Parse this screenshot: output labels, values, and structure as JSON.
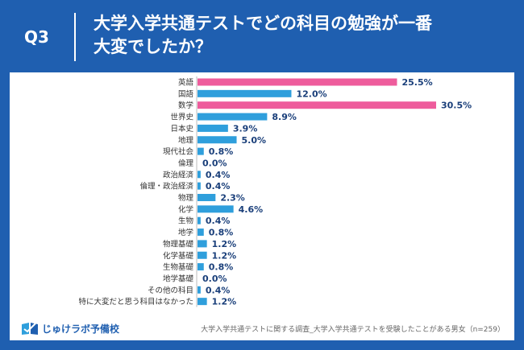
{
  "header": {
    "q_label": "Q3",
    "title": "大学入学共通テストでどの科目の勉強が一番大変でしたか？"
  },
  "footer": {
    "logo_text": "じゅけラボ予備校",
    "note": "大学入学共通テストに関する調査_大学入学共通テストを受験したことがある男女（n=259）"
  },
  "colors": {
    "background": "#1f5fb0",
    "bar": "#2f9fdc",
    "highlight": "#ee5c9c",
    "label": "#1a3f7a"
  },
  "chart_data": {
    "type": "bar",
    "orientation": "horizontal",
    "categories": [
      "英語",
      "国語",
      "数学",
      "世界史",
      "日本史",
      "地理",
      "現代社会",
      "倫理",
      "政治経済",
      "倫理・政治経済",
      "物理",
      "化学",
      "生物",
      "地学",
      "物理基礎",
      "化学基礎",
      "生物基礎",
      "地学基礎",
      "その他の科目",
      "特に大変だと思う科目はなかった"
    ],
    "values": [
      25.5,
      12.0,
      30.5,
      8.9,
      3.9,
      5.0,
      0.8,
      0.0,
      0.4,
      0.4,
      2.3,
      4.6,
      0.4,
      0.8,
      1.2,
      1.2,
      0.8,
      0.0,
      0.4,
      1.2
    ],
    "value_labels": [
      "25.5%",
      "12.0%",
      "30.5%",
      "8.9%",
      "3.9%",
      "5.0%",
      "0.8%",
      "0.0%",
      "0.4%",
      "0.4%",
      "2.3%",
      "4.6%",
      "0.4%",
      "0.8%",
      "1.2%",
      "1.2%",
      "0.8%",
      "0.0%",
      "0.4%",
      "1.2%"
    ],
    "highlighted": [
      "英語",
      "数学"
    ],
    "xlim": [
      0,
      30.5
    ],
    "grid": false,
    "title": "",
    "xlabel": "",
    "ylabel": ""
  }
}
